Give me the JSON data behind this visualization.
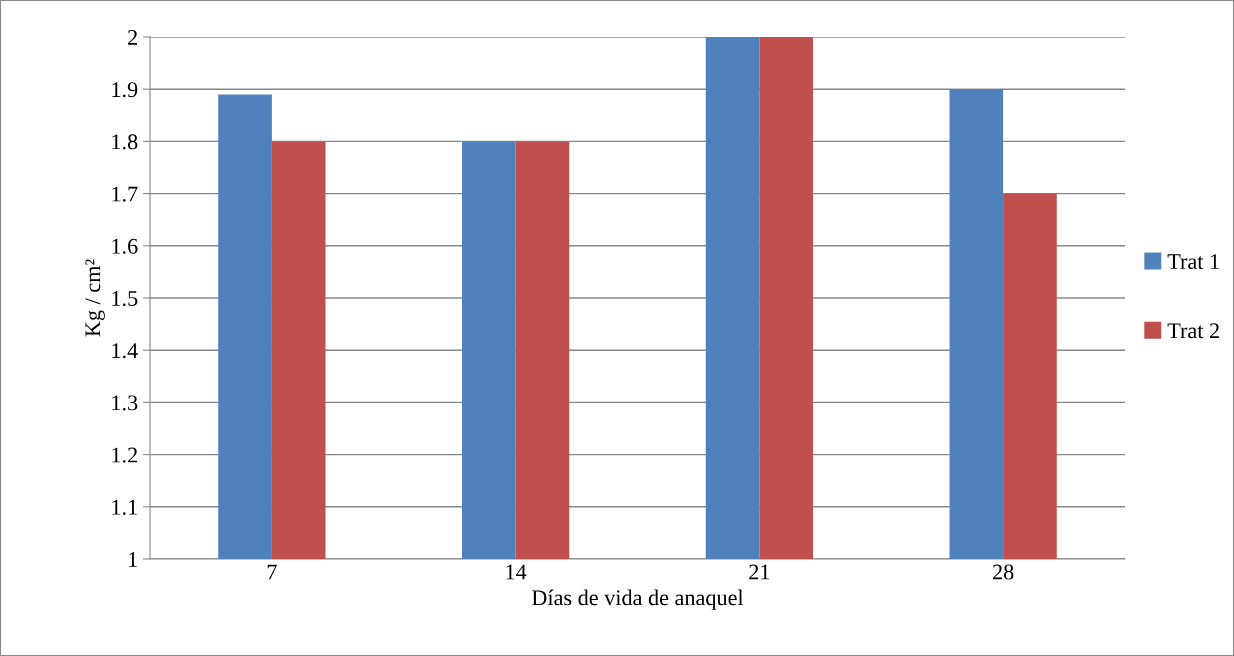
{
  "chart_data": {
    "type": "bar",
    "xlabel": "Días de vida de anaquel",
    "ylabel": "Kg / cm²",
    "categories": [
      "7",
      "14",
      "21",
      "28"
    ],
    "series": [
      {
        "name": "Trat 1",
        "color": "#4f81bd",
        "values": [
          1.89,
          1.8,
          2.0,
          1.9
        ]
      },
      {
        "name": "Trat 2",
        "color": "#c0504d",
        "values": [
          1.8,
          1.8,
          2.0,
          1.7
        ]
      }
    ],
    "ylim": [
      1,
      2
    ],
    "yticks": [
      1,
      1.1,
      1.2,
      1.3,
      1.4,
      1.5,
      1.6,
      1.7,
      1.8,
      1.9,
      2
    ],
    "grid": "y",
    "legend": "right"
  }
}
